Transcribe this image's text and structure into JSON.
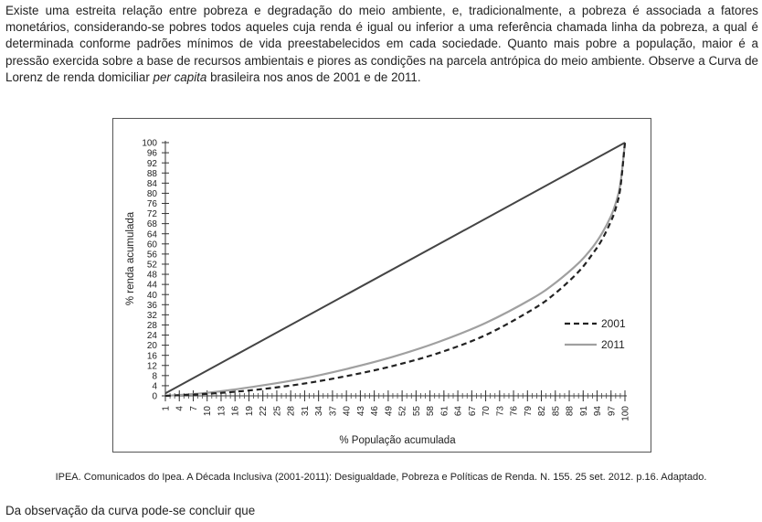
{
  "intro": {
    "part1": "Existe uma estreita relação entre pobreza e degradação do meio ambiente, e, tradicionalmente, a pobreza é associada a fatores monetários, considerando-se pobres todos aqueles cuja renda é igual ou inferior a uma referência chamada linha da pobreza, a qual é determinada conforme padrões mínimos de vida preestabelecidos em cada sociedade. Quanto mais pobre a população, maior é a pressão exercida sobre a base de recursos ambientais e piores as condições na parcela antrópica do meio ambiente. Observe a Curva de Lorenz de renda domiciliar ",
    "emphasis": "per capita",
    "part2": " brasileira nos anos de 2001 e de 2011."
  },
  "chart_data": {
    "type": "line",
    "xlabel": "% População acumulada",
    "ylabel": "% renda acumulada",
    "xlim": [
      1,
      100
    ],
    "ylim": [
      0,
      100
    ],
    "x_ticks": [
      1,
      4,
      7,
      10,
      13,
      16,
      19,
      22,
      25,
      28,
      31,
      34,
      37,
      40,
      43,
      46,
      49,
      52,
      55,
      58,
      61,
      64,
      67,
      70,
      73,
      76,
      79,
      82,
      85,
      88,
      91,
      94,
      97,
      100
    ],
    "y_ticks": [
      0,
      4,
      8,
      12,
      16,
      20,
      24,
      28,
      32,
      36,
      40,
      44,
      48,
      52,
      56,
      60,
      64,
      68,
      72,
      76,
      80,
      84,
      88,
      92,
      96,
      100
    ],
    "grid": false,
    "legend_position": "right",
    "equality_line": {
      "x": [
        1,
        100
      ],
      "y": [
        1,
        100
      ],
      "color": "#444444"
    },
    "series": [
      {
        "name": "2001",
        "style": "dashed",
        "color": "#222222",
        "x": [
          1,
          10,
          20,
          30,
          40,
          50,
          60,
          70,
          80,
          85,
          90,
          93,
          95,
          97,
          98,
          99,
          100
        ],
        "y": [
          0,
          0.8,
          2.3,
          4.6,
          7.8,
          11.8,
          17.0,
          24.0,
          34.0,
          40.5,
          49.0,
          56.0,
          61.5,
          69.0,
          74.0,
          82.0,
          100
        ]
      },
      {
        "name": "2011",
        "style": "solid",
        "color": "#a0a0a0",
        "x": [
          1,
          10,
          20,
          30,
          40,
          50,
          60,
          70,
          80,
          85,
          90,
          93,
          95,
          97,
          98,
          99,
          100
        ],
        "y": [
          0,
          1.2,
          3.6,
          6.6,
          10.6,
          15.4,
          21.4,
          28.8,
          38.4,
          44.6,
          52.4,
          58.6,
          64.0,
          71.0,
          76.0,
          83.5,
          100
        ]
      }
    ]
  },
  "source": "IPEA. Comunicados do Ipea. A Década Inclusiva (2001-2011): Desigualdade, Pobreza e Políticas de Renda. N. 155. 25 set. 2012. p.16. Adaptado.",
  "question": "Da observação da curva pode-se concluir que"
}
